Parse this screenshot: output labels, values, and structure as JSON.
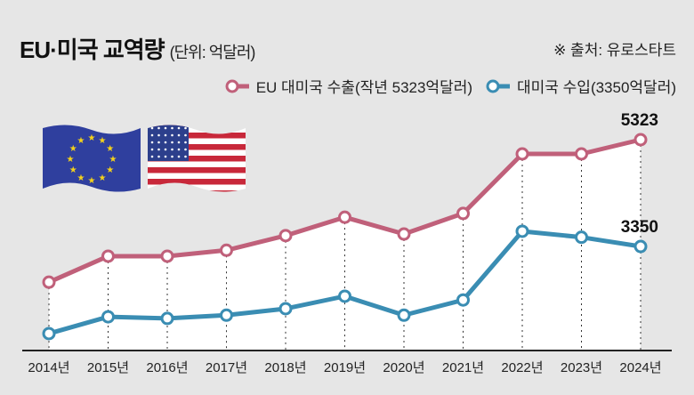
{
  "chart_data": {
    "type": "line",
    "title": "EU·미국 교역량",
    "unit": "(단위: 억달러)",
    "source": "※ 출처: 유로스타트",
    "categories": [
      "2014년",
      "2015년",
      "2016년",
      "2017년",
      "2018년",
      "2019년",
      "2020년",
      "2021년",
      "2022년",
      "2023년",
      "2024년"
    ],
    "series": [
      {
        "name": "EU 대미국 수출(작년 5323억달러)",
        "color": "#c0607a",
        "values": [
          2690,
          3170,
          3170,
          3280,
          3550,
          3890,
          3580,
          3960,
          5060,
          5060,
          5323
        ],
        "end_label": "5323"
      },
      {
        "name": "대미국 수입(3350억달러)",
        "color": "#3a8db3",
        "values": [
          1740,
          2050,
          2020,
          2080,
          2200,
          2430,
          2080,
          2360,
          3630,
          3520,
          3350
        ],
        "end_label": "3350"
      }
    ],
    "ylim": [
      0,
      5323
    ],
    "grid": "vertical dotted",
    "legend": "top-right"
  },
  "icons": [
    "eu-flag",
    "us-flag"
  ]
}
